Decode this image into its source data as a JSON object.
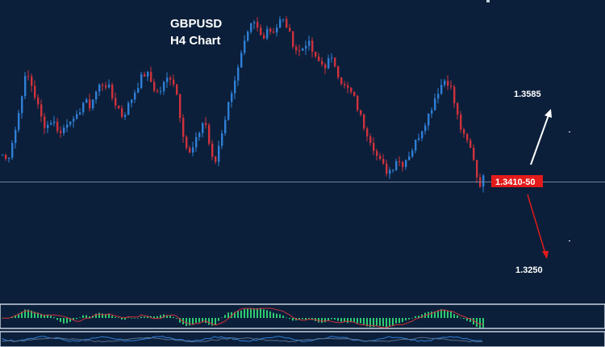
{
  "chart_data": {
    "type": "candlestick",
    "title": "GBPUSD",
    "subtitle": "H4 Chart",
    "colors": {
      "background": "#0b1f3a",
      "bull": "#2f7fd6",
      "bear": "#d0323c",
      "current_price_line": "#6f8299",
      "panel_border": "#c7d1dc",
      "histogram": "#2ecc71",
      "signal_line": "#d0323c",
      "lower_line_a": "#2f7fd6",
      "lower_line_b": "#5a6f8c",
      "label_box": "#e31b1b",
      "up_arrow": "#ffffff",
      "down_arrow": "#e31b1b"
    },
    "y_range": [
      1.322,
      1.364
    ],
    "close_path": [
      1.3425,
      1.3415,
      1.3445,
      1.347,
      1.3515,
      1.3545,
      1.3528,
      1.3505,
      1.348,
      1.3465,
      1.3475,
      1.347,
      1.3455,
      1.3468,
      1.348,
      1.347,
      1.349,
      1.3505,
      1.3495,
      1.351,
      1.3525,
      1.353,
      1.3525,
      1.3505,
      1.3495,
      1.348,
      1.3495,
      1.351,
      1.3525,
      1.354,
      1.3545,
      1.353,
      1.3515,
      1.352,
      1.3535,
      1.354,
      1.3525,
      1.348,
      1.344,
      1.3425,
      1.344,
      1.346,
      1.348,
      1.344,
      1.3405,
      1.344,
      1.347,
      1.35,
      1.353,
      1.355,
      1.358,
      1.36,
      1.362,
      1.361,
      1.3595,
      1.3612,
      1.3605,
      1.3612,
      1.3625,
      1.3615,
      1.3595,
      1.358,
      1.3575,
      1.359,
      1.3585,
      1.3565,
      1.356,
      1.3555,
      1.3565,
      1.356,
      1.354,
      1.3525,
      1.352,
      1.351,
      1.349,
      1.347,
      1.3455,
      1.344,
      1.342,
      1.341,
      1.34,
      1.3405,
      1.342,
      1.341,
      1.342,
      1.343,
      1.3445,
      1.346,
      1.3475,
      1.349,
      1.351,
      1.3525,
      1.3535,
      1.353,
      1.35,
      1.347,
      1.345,
      1.344,
      1.342,
      1.338,
      1.339
    ],
    "current_price_line": 1.3385,
    "annotations": {
      "target_up": "1.3585",
      "target_down": "1.3250",
      "pivot": "1.3410-50"
    }
  }
}
